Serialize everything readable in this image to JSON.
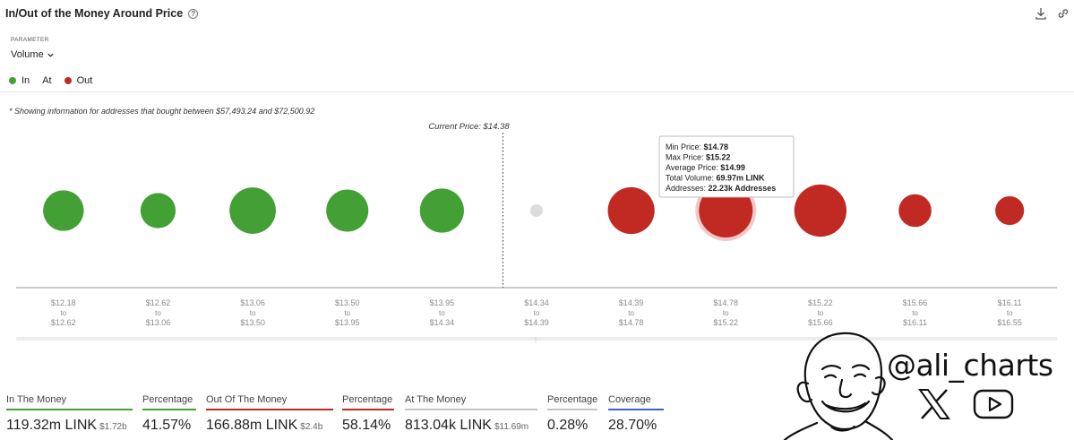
{
  "header": {
    "title": "In/Out of the Money Around Price",
    "help_icon": "question-circle-icon",
    "download_icon": "download-icon",
    "link_icon": "link-icon"
  },
  "parameter": {
    "label": "PARAMETER",
    "value": "Volume"
  },
  "legend": {
    "items": [
      {
        "label": "In",
        "color": "#43a035"
      },
      {
        "label": "At",
        "color": ""
      },
      {
        "label": "Out",
        "color": "#c12a22"
      }
    ]
  },
  "note": "* Showing information for addresses that bought between $57,493.24 and $72,500.92",
  "chart_data": {
    "type": "scatter",
    "current_price_label": "Current Price: $14.38",
    "current_price_after_bucket": 5,
    "bucket_separator": "to",
    "buckets": [
      {
        "from": "$12.18",
        "to": "$12.62",
        "status": "in",
        "volume_m": 40
      },
      {
        "from": "$12.62",
        "to": "$13.06",
        "status": "in",
        "volume_m": 30
      },
      {
        "from": "$13.06",
        "to": "$13.50",
        "status": "in",
        "volume_m": 52
      },
      {
        "from": "$13.50",
        "to": "$13.95",
        "status": "in",
        "volume_m": 43
      },
      {
        "from": "$13.95",
        "to": "$14.34",
        "status": "in",
        "volume_m": 47
      },
      {
        "from": "$14.34",
        "to": "$14.39",
        "status": "at",
        "volume_m": 0.8
      },
      {
        "from": "$14.39",
        "to": "$14.78",
        "status": "out",
        "volume_m": 53
      },
      {
        "from": "$14.78",
        "to": "$15.22",
        "status": "out",
        "volume_m": 69.97,
        "highlighted": true
      },
      {
        "from": "$15.22",
        "to": "$15.66",
        "status": "out",
        "volume_m": 66
      },
      {
        "from": "$15.66",
        "to": "$16.11",
        "status": "out",
        "volume_m": 26
      },
      {
        "from": "$16.11",
        "to": "$16.55",
        "status": "out",
        "volume_m": 20
      }
    ],
    "colors": {
      "in": "#43a035",
      "at": "#dcdcdc",
      "out": "#c12a22"
    },
    "tooltip": {
      "bucket_index": 7,
      "rows": [
        {
          "label": "Min Price: ",
          "value": "$14.78"
        },
        {
          "label": "Max Price: ",
          "value": "$15.22"
        },
        {
          "label": "Average Price: ",
          "value": "$14.99"
        },
        {
          "label": "Total Volume: ",
          "value": "69.97m LINK"
        },
        {
          "label": "Addresses: ",
          "value": "22.23k Addresses"
        }
      ]
    }
  },
  "stats": [
    {
      "label": "In The Money",
      "value": "119.32m LINK",
      "sub": "$1.72b",
      "accent": "#43a035"
    },
    {
      "label": "Percentage",
      "value": "41.57%",
      "sub": "",
      "accent": "#43a035"
    },
    {
      "label": "Out Of The Money",
      "value": "166.88m LINK",
      "sub": "$2.4b",
      "accent": "#c12a22"
    },
    {
      "label": "Percentage",
      "value": "58.14%",
      "sub": "",
      "accent": "#c12a22"
    },
    {
      "label": "At The Money",
      "value": "813.04k LINK",
      "sub": "$11.69m",
      "accent": "#c4c4c4"
    },
    {
      "label": "Percentage",
      "value": "0.28%",
      "sub": "",
      "accent": "#c4c4c4"
    },
    {
      "label": "Coverage",
      "value": "28.70%",
      "sub": "",
      "accent": "#3f5fd8"
    }
  ],
  "watermark": {
    "handle": "@ali_charts"
  }
}
